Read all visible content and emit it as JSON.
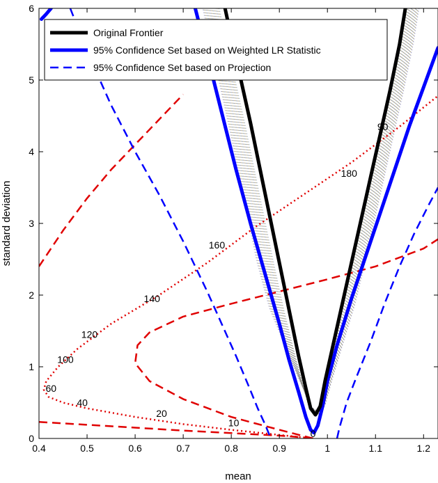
{
  "chart_data": {
    "type": "line",
    "title": "",
    "xlabel": "mean",
    "ylabel": "standard deviation",
    "xlim": [
      0.4,
      1.23
    ],
    "ylim": [
      0,
      6
    ],
    "x_ticks": [
      "0.4",
      "0.5",
      "0.6",
      "0.7",
      "0.8",
      "0.9",
      "1",
      "1.1",
      "1.2"
    ],
    "y_ticks": [
      "0",
      "1",
      "2",
      "3",
      "4",
      "5",
      "6"
    ],
    "grid": false,
    "legend_position": "top-right",
    "series": [
      {
        "name": "Original Frontier",
        "color": "#000000",
        "style": "solid-thick",
        "x": [
          0.787,
          0.8,
          0.82,
          0.84,
          0.86,
          0.88,
          0.9,
          0.92,
          0.94,
          0.955,
          0.965,
          0.975,
          0.985,
          0.995,
          1.01,
          1.03,
          1.05,
          1.07,
          1.09,
          1.11,
          1.13,
          1.15,
          1.162
        ],
        "y": [
          6.0,
          5.6,
          5.0,
          4.4,
          3.75,
          3.1,
          2.45,
          1.8,
          1.15,
          0.7,
          0.42,
          0.33,
          0.45,
          0.8,
          1.25,
          1.85,
          2.45,
          3.05,
          3.65,
          4.25,
          4.85,
          5.5,
          6.0
        ]
      },
      {
        "name": "95% Confidence Set based on Weighted LR Statistic",
        "color": "#0000ff",
        "style": "solid-thick",
        "segments": [
          {
            "x": [
              0.725,
              0.75,
              0.78,
              0.81,
              0.84,
              0.87,
              0.9,
              0.92,
              0.94,
              0.955,
              0.965,
              0.972,
              0.98,
              0.99,
              1.0,
              1.02,
              1.05,
              1.08,
              1.11,
              1.14,
              1.17,
              1.2,
              1.23
            ],
            "y": [
              6.0,
              5.35,
              4.55,
              3.75,
              3.0,
              2.3,
              1.6,
              1.1,
              0.65,
              0.3,
              0.12,
              0.08,
              0.18,
              0.45,
              0.8,
              1.3,
              1.95,
              2.55,
              3.15,
              3.75,
              4.35,
              4.9,
              5.45
            ]
          },
          {
            "x": [
              0.405,
              0.415,
              0.425
            ],
            "y": [
              5.85,
              5.92,
              6.0
            ]
          }
        ]
      },
      {
        "name": "95% Confidence Set based on Projection",
        "color": "#0000ff",
        "style": "dashed",
        "segments": [
          {
            "x": [
              0.465,
              0.5,
              0.55,
              0.6,
              0.65,
              0.7,
              0.75,
              0.78,
              0.81,
              0.835,
              0.855,
              0.87,
              0.878,
              0.882
            ],
            "y": [
              6.0,
              5.4,
              4.65,
              4.0,
              3.4,
              2.75,
              2.05,
              1.6,
              1.15,
              0.75,
              0.42,
              0.2,
              0.07,
              0.0
            ]
          },
          {
            "x": [
              1.02,
              1.025,
              1.04,
              1.06,
              1.09,
              1.12,
              1.15,
              1.18,
              1.21,
              1.23
            ],
            "y": [
              0.0,
              0.15,
              0.5,
              0.85,
              1.35,
              1.9,
              2.4,
              2.85,
              3.25,
              3.5
            ]
          }
        ]
      },
      {
        "color": "#e00000",
        "style": "dashed",
        "segments": [
          {
            "x": [
              0.4,
              0.45,
              0.5,
              0.55,
              0.6,
              0.65,
              0.7
            ],
            "y": [
              2.4,
              2.9,
              3.35,
              3.75,
              4.1,
              4.45,
              4.8
            ]
          },
          {
            "x": [
              0.97,
              0.9,
              0.8,
              0.7,
              0.63,
              0.6,
              0.605,
              0.63,
              0.7,
              0.8,
              0.9,
              1.0,
              1.1,
              1.2,
              1.23
            ],
            "y": [
              0.0,
              0.12,
              0.3,
              0.55,
              0.8,
              1.05,
              1.3,
              1.48,
              1.7,
              1.88,
              2.05,
              2.22,
              2.4,
              2.65,
              2.78
            ]
          },
          {
            "x": [
              0.4,
              0.5,
              0.6,
              0.7,
              0.8,
              0.9,
              0.95,
              0.97
            ],
            "y": [
              0.23,
              0.19,
              0.15,
              0.11,
              0.075,
              0.04,
              0.015,
              0.0
            ]
          }
        ]
      },
      {
        "color": "#e00000",
        "style": "dotted",
        "segments": [
          {
            "x": [
              0.97,
              0.9,
              0.8,
              0.7,
              0.6,
              0.5,
              0.45,
              0.42,
              0.41,
              0.415,
              0.44,
              0.48,
              0.55,
              0.65,
              0.75,
              0.85,
              0.95,
              1.05,
              1.15,
              1.23
            ],
            "y": [
              0.0,
              0.05,
              0.12,
              0.2,
              0.3,
              0.42,
              0.5,
              0.58,
              0.68,
              0.8,
              1.0,
              1.25,
              1.6,
              2.0,
              2.45,
              2.95,
              3.4,
              3.85,
              4.35,
              4.78
            ]
          }
        ]
      }
    ],
    "annotations": [
      {
        "text": "90",
        "x": 1.115,
        "y": 4.35
      },
      {
        "text": "180",
        "x": 1.045,
        "y": 3.7
      },
      {
        "text": "160",
        "x": 0.77,
        "y": 2.7
      },
      {
        "text": "140",
        "x": 0.635,
        "y": 1.95
      },
      {
        "text": "120",
        "x": 0.505,
        "y": 1.45
      },
      {
        "text": "100",
        "x": 0.455,
        "y": 1.1
      },
      {
        "text": "60",
        "x": 0.425,
        "y": 0.7
      },
      {
        "text": "40",
        "x": 0.49,
        "y": 0.5
      },
      {
        "text": "20",
        "x": 0.655,
        "y": 0.35
      },
      {
        "text": "10",
        "x": 0.805,
        "y": 0.22
      },
      {
        "text": "0",
        "x": 0.97,
        "y": 0.07
      }
    ],
    "cloud_color": "#5a5a9a"
  }
}
